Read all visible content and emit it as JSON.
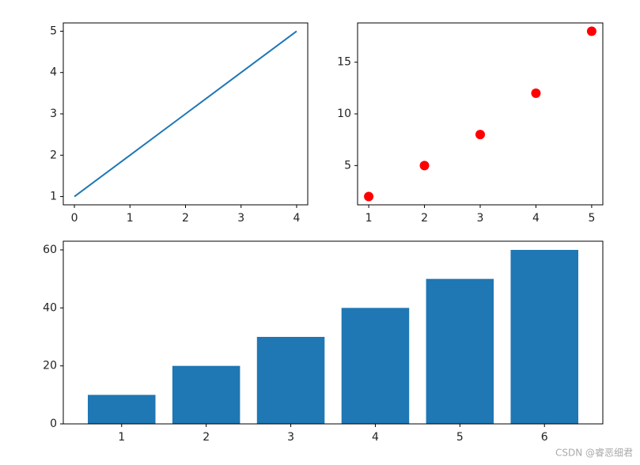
{
  "chart_data": [
    {
      "type": "line",
      "x": [
        0,
        1,
        2,
        3,
        4
      ],
      "series": [
        {
          "color": "#1f77b4",
          "values": [
            1,
            2,
            3,
            4,
            5
          ]
        }
      ],
      "xlim": [
        -0.2,
        4.2
      ],
      "ylim": [
        0.8,
        5.2
      ],
      "xticks": [
        0,
        1,
        2,
        3,
        4
      ],
      "yticks": [
        1,
        2,
        3,
        4,
        5
      ]
    },
    {
      "type": "scatter",
      "x": [
        1,
        2,
        3,
        4,
        5
      ],
      "series": [
        {
          "color": "#ff0000",
          "values": [
            2,
            5,
            8,
            12,
            18
          ]
        }
      ],
      "xlim": [
        0.8,
        5.2
      ],
      "ylim": [
        1.2,
        18.8
      ],
      "xticks": [
        1,
        2,
        3,
        4,
        5
      ],
      "yticks": [
        5,
        10,
        15
      ]
    },
    {
      "type": "bar",
      "x": [
        1,
        2,
        3,
        4,
        5,
        6
      ],
      "series": [
        {
          "color": "#1f77b4",
          "values": [
            10,
            20,
            30,
            40,
            50,
            60
          ]
        }
      ],
      "xlim": [
        0.31,
        6.69
      ],
      "ylim": [
        0,
        63
      ],
      "xticks": [
        1,
        2,
        3,
        4,
        5,
        6
      ],
      "yticks": [
        0,
        20,
        40,
        60
      ]
    }
  ],
  "watermark": "CSDN @睿恶细君"
}
